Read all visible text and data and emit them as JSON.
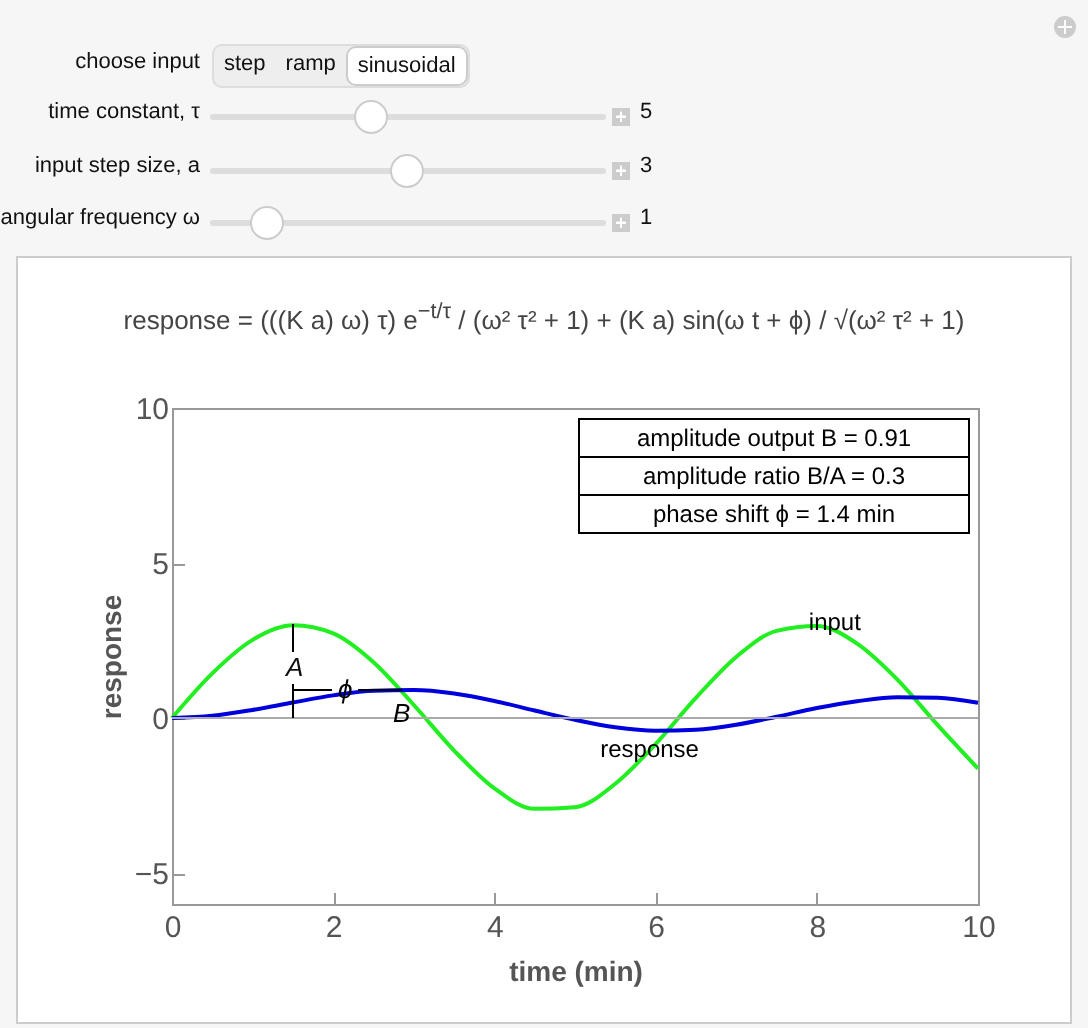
{
  "chart_data": {
    "type": "line",
    "title": "response = (((K a) ω) τ) e$^{−t/τ}$ / (ω² τ² + 1) + (K a) sin(ω t + ϕ) / √(ω² τ² + 1)",
    "xlabel": "time (min)",
    "ylabel": "response",
    "x": [
      0,
      0.5,
      1,
      1.5,
      2,
      2.5,
      3,
      3.5,
      4,
      4.5,
      5,
      5.5,
      6,
      6.5,
      7,
      7.5,
      8,
      8.5,
      9,
      9.5,
      10
    ],
    "series": [
      {
        "name": "input",
        "color": "#22ee22",
        "values": [
          0,
          1.44,
          2.52,
          2.99,
          2.73,
          1.8,
          0.42,
          -1.05,
          -2.27,
          -2.93,
          -2.88,
          -2.12,
          -0.84,
          0.65,
          1.97,
          2.81,
          2.97,
          2.4,
          1.24,
          -0.23,
          -1.63
        ]
      },
      {
        "name": "response",
        "color": "#0000dd",
        "values": [
          0,
          0.07,
          0.26,
          0.5,
          0.73,
          0.88,
          0.9,
          0.79,
          0.55,
          0.24,
          -0.06,
          -0.3,
          -0.41,
          -0.38,
          -0.22,
          0.04,
          0.32,
          0.54,
          0.67,
          0.65,
          0.49
        ]
      }
    ],
    "xlim": [
      0,
      10
    ],
    "xticks": [
      0,
      2,
      4,
      6,
      8,
      10
    ],
    "ylim": [
      -6,
      10
    ],
    "yticks": [
      -5,
      0,
      5,
      10
    ],
    "grid": false,
    "legend": false,
    "marker": "none",
    "line_style": "solid",
    "ref_lines": [
      {
        "axis": "y",
        "value": 0,
        "color": "#aaaaaa"
      }
    ],
    "annotations": [
      "choose input",
      "step",
      "ramp",
      "sinusoidal",
      "time constant, τ",
      "5",
      "input step size, a",
      "3",
      "angular frequency ω",
      "1",
      "amplitude output   B   =  0.91",
      "amplitude ratio   B/A   =   0.3",
      "phase shift ϕ  =  1.4 min",
      "A",
      {
        "text": "ϕ",
        "x": 2.15,
        "y": 0.9
      },
      {
        "text": "B",
        "x": 2.85,
        "y": 0.9
      }
    ]
  }
}
